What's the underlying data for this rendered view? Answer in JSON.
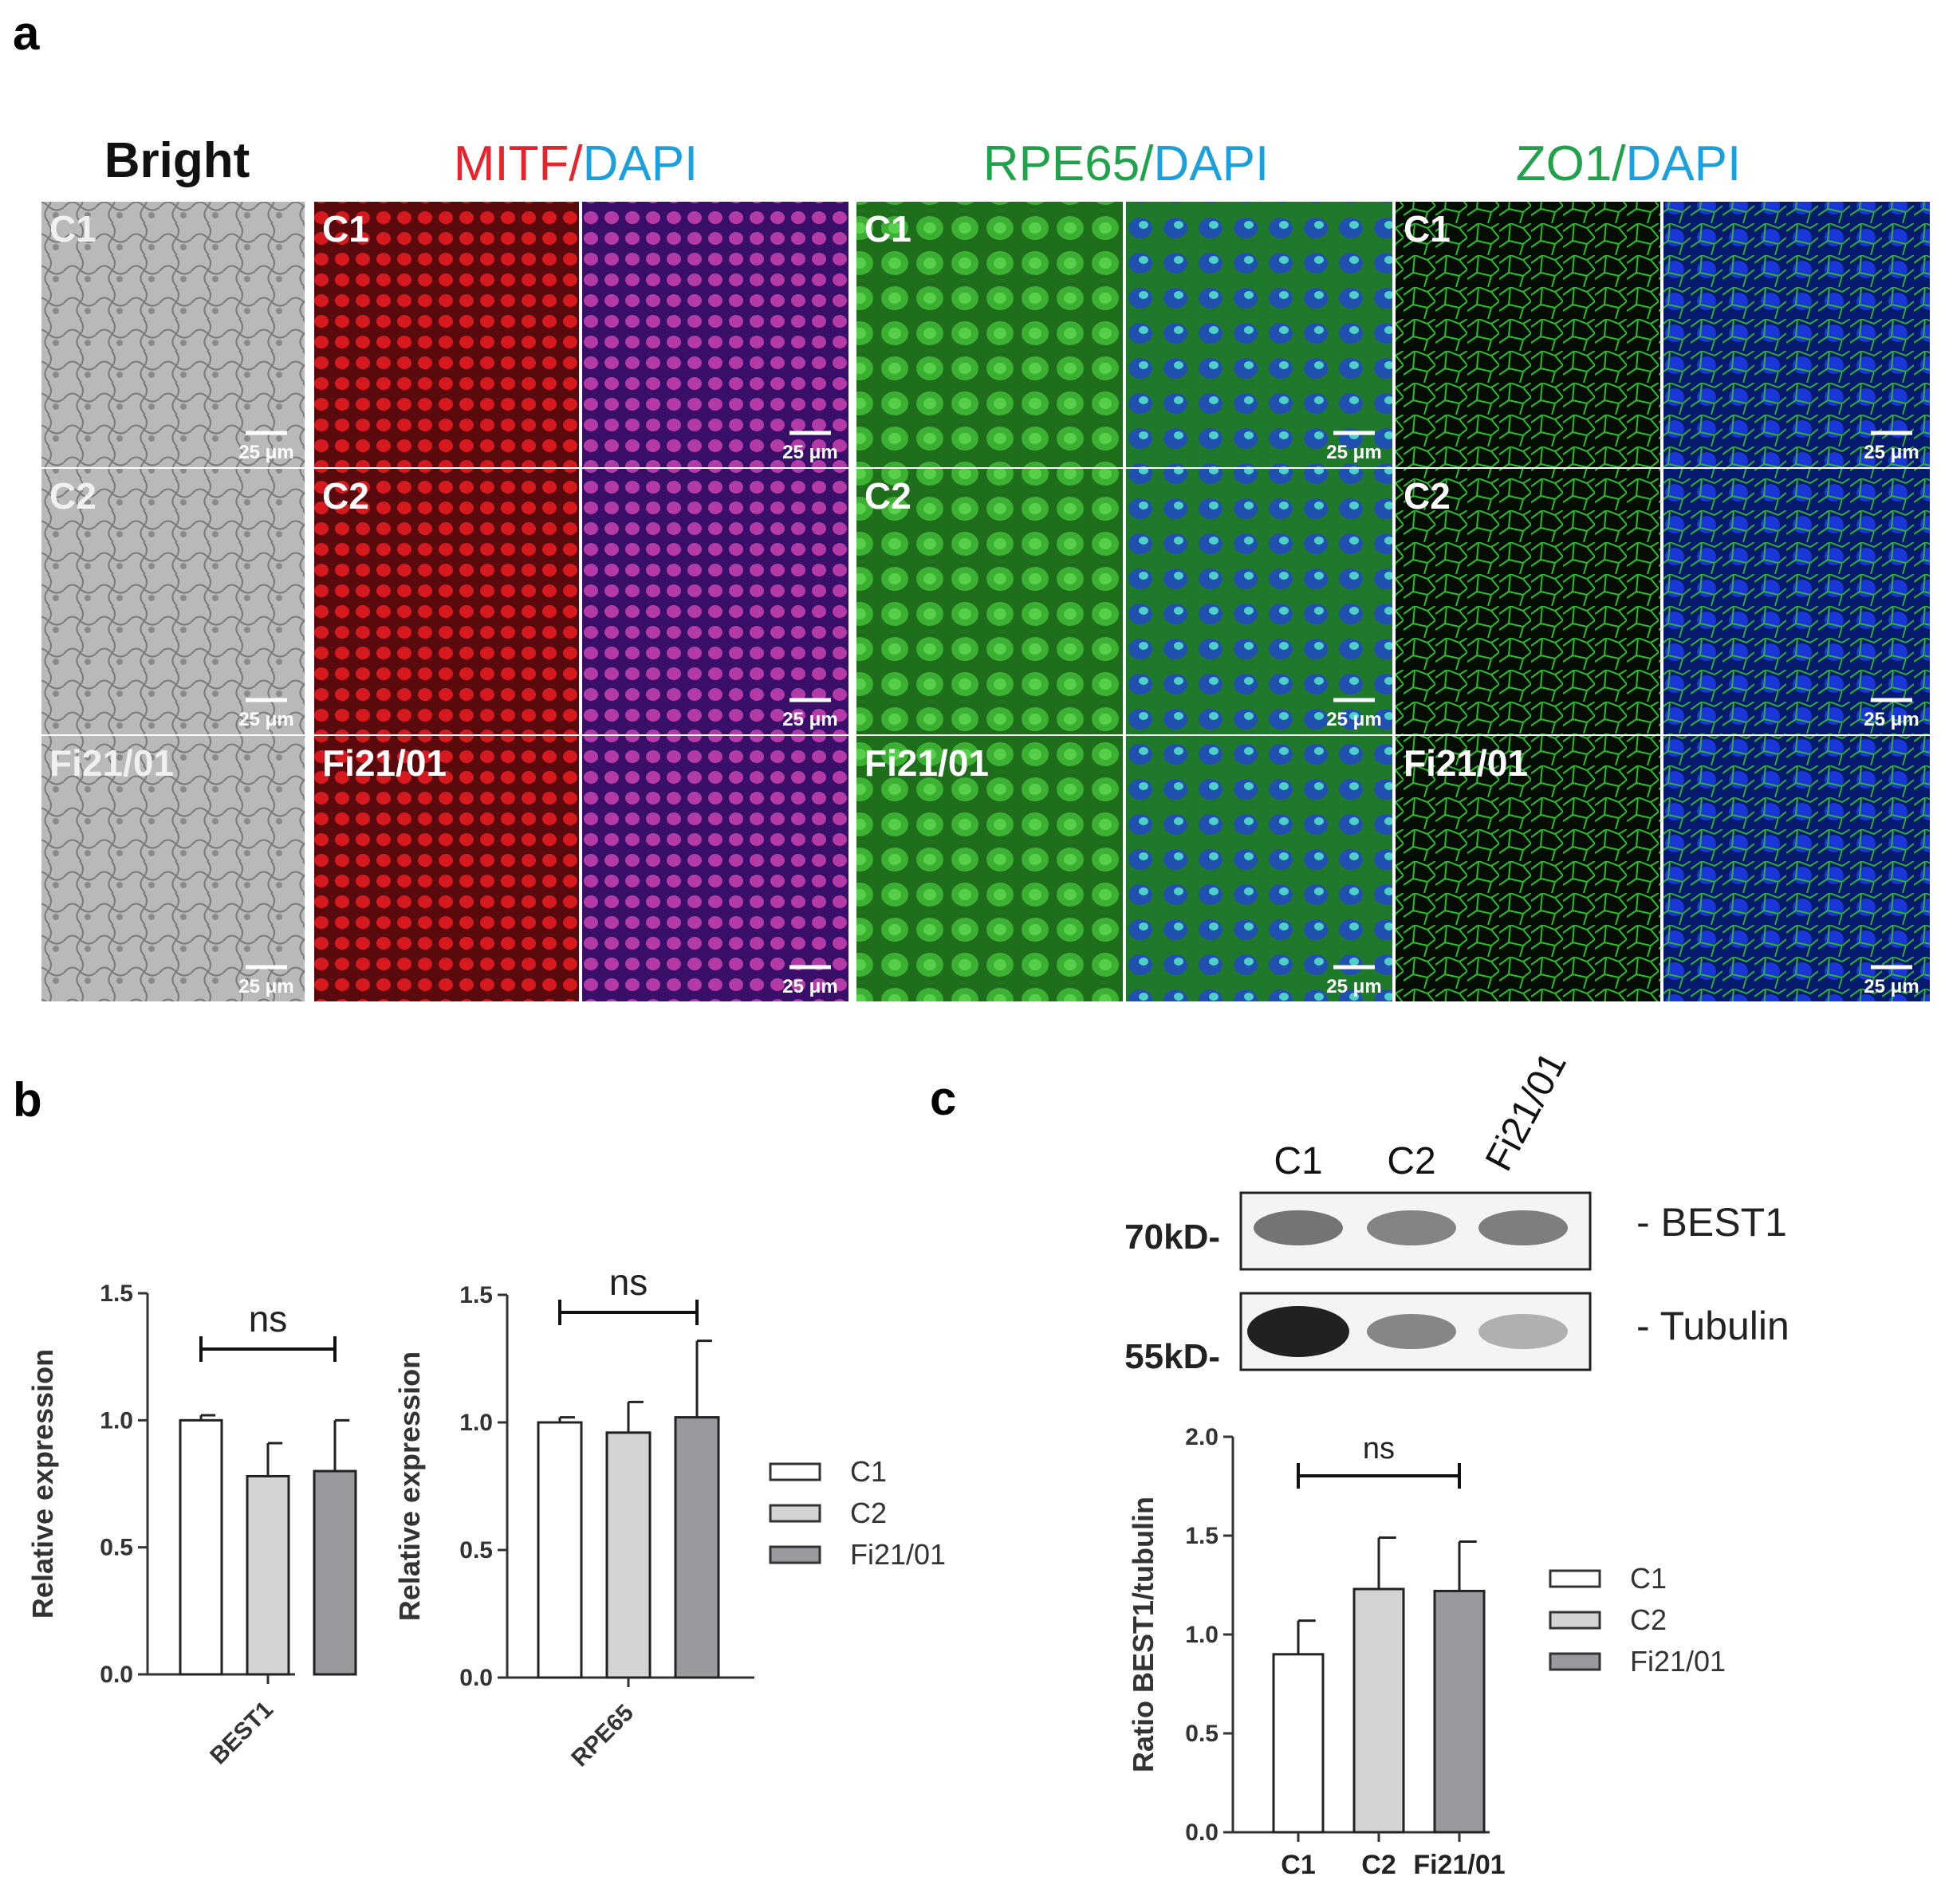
{
  "panel_letters": {
    "a": "a",
    "b": "b",
    "c": "c"
  },
  "panel_a": {
    "headers": {
      "bright": "Bright",
      "mitf": "MITF",
      "mitf_slash": "/",
      "mitf_dapi": "DAPI",
      "rpe65": "RPE65",
      "rpe65_slash": "/",
      "rpe65_dapi": "DAPI",
      "zo1": "ZO1",
      "zo1_slash": "/",
      "zo1_dapi": "DAPI"
    },
    "rows": [
      "C1",
      "C2",
      "Fi21/01"
    ],
    "scale_bar": "25 μm",
    "colors": {
      "mitf": "#e8232b",
      "green_label": "#1fa34a",
      "dapi_label": "#1aa0dd",
      "bright_bg": "#b8b8b8",
      "mitf_bg": "#b3121a",
      "merge_mitf_bg": "#7a1f8c",
      "rpe65_bg": "#2f9a28",
      "merge_rpe65_bg": "#2f6a70",
      "zo1_bg": "#0c3a0e",
      "merge_zo1_bg": "#0d2aa6"
    }
  },
  "chart_data": [
    {
      "type": "bar",
      "categories": [
        "BEST1"
      ],
      "series": [
        {
          "name": "C1",
          "values": [
            1.0
          ],
          "error": [
            0.02
          ]
        },
        {
          "name": "C2",
          "values": [
            0.78
          ],
          "error": [
            0.13
          ]
        },
        {
          "name": "Fi21/01",
          "values": [
            0.8
          ],
          "error": [
            0.2
          ]
        }
      ],
      "ylabel": "Relative expression",
      "ylim": [
        0,
        1.5
      ],
      "yticks": [
        "0.0",
        "0.5",
        "1.0",
        "1.5"
      ],
      "annotation": "ns"
    },
    {
      "type": "bar",
      "categories": [
        "RPE65"
      ],
      "series": [
        {
          "name": "C1",
          "values": [
            1.0
          ],
          "error": [
            0.02
          ]
        },
        {
          "name": "C2",
          "values": [
            0.96
          ],
          "error": [
            0.12
          ]
        },
        {
          "name": "Fi21/01",
          "values": [
            1.02
          ],
          "error": [
            0.3
          ]
        }
      ],
      "ylabel": "Relative expression",
      "ylim": [
        0,
        1.5
      ],
      "yticks": [
        "0.0",
        "0.5",
        "1.0",
        "1.5"
      ],
      "annotation": "ns"
    },
    {
      "type": "bar",
      "categories": [
        "C1",
        "C2",
        "Fi21/01"
      ],
      "values": [
        0.9,
        1.23,
        1.22
      ],
      "error": [
        0.17,
        0.26,
        0.25
      ],
      "ylabel": "Ratio BEST1/tubulin",
      "ylim": [
        0,
        2.0
      ],
      "yticks": [
        "0.0",
        "0.5",
        "1.0",
        "1.5",
        "2.0"
      ],
      "annotation": "ns"
    }
  ],
  "legend": {
    "items": [
      "C1",
      "C2",
      "Fi21/01"
    ],
    "colors": [
      "#ffffff",
      "#d4d4d4",
      "#9a9a9e"
    ]
  },
  "western_blot": {
    "lanes": [
      "C1",
      "C2",
      "Fi21/01"
    ],
    "markers": [
      "70kD-",
      "55kD-"
    ],
    "bands": [
      "- BEST1",
      "- Tubulin"
    ]
  }
}
